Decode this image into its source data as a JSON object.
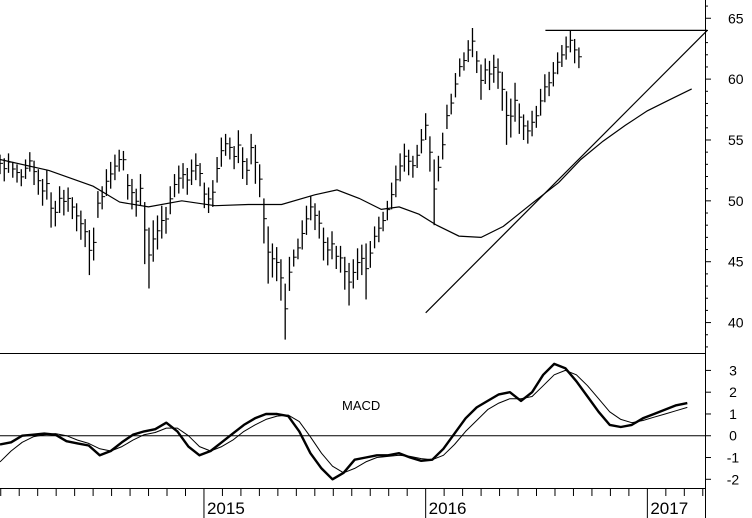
{
  "chart_data": [
    {
      "type": "ohlc",
      "panel": "price",
      "title": "",
      "xlabel": "",
      "ylabel": "",
      "ylim": [
        37.5,
        66.5
      ],
      "y_ticks": [
        40,
        45,
        50,
        55,
        60,
        65
      ],
      "x_range": [
        2014.08,
        2017.26
      ],
      "x_tick_labels": [
        "2015",
        "2016",
        "2017"
      ],
      "x_tick_values": [
        2015,
        2016,
        2017
      ],
      "price_bars_x_start": 2014.08,
      "price_bars_step_years": 0.0192,
      "price_bars": [
        {
          "h": 53.8,
          "l": 52.2
        },
        {
          "h": 53.5,
          "l": 51.6
        },
        {
          "h": 53.9,
          "l": 52.3
        },
        {
          "h": 53.2,
          "l": 51.9
        },
        {
          "h": 53.0,
          "l": 51.5
        },
        {
          "h": 52.6,
          "l": 51.2
        },
        {
          "h": 53.4,
          "l": 51.8
        },
        {
          "h": 54.0,
          "l": 52.4
        },
        {
          "h": 53.3,
          "l": 51.3
        },
        {
          "h": 52.6,
          "l": 50.5
        },
        {
          "h": 51.8,
          "l": 49.6
        },
        {
          "h": 52.5,
          "l": 50.1
        },
        {
          "h": 50.7,
          "l": 47.8
        },
        {
          "h": 50.0,
          "l": 47.9
        },
        {
          "h": 51.2,
          "l": 49.0
        },
        {
          "h": 50.9,
          "l": 48.8
        },
        {
          "h": 51.1,
          "l": 49.1
        },
        {
          "h": 50.3,
          "l": 48.5
        },
        {
          "h": 49.8,
          "l": 47.5
        },
        {
          "h": 49.2,
          "l": 46.8
        },
        {
          "h": 48.5,
          "l": 46.2
        },
        {
          "h": 47.6,
          "l": 43.9
        },
        {
          "h": 47.8,
          "l": 45.1
        },
        {
          "h": 50.8,
          "l": 48.6
        },
        {
          "h": 51.2,
          "l": 49.3
        },
        {
          "h": 52.6,
          "l": 50.4
        },
        {
          "h": 53.2,
          "l": 51.0
        },
        {
          "h": 53.8,
          "l": 51.7
        },
        {
          "h": 54.2,
          "l": 52.4
        },
        {
          "h": 54.1,
          "l": 52.5
        },
        {
          "h": 52.2,
          "l": 50.1
        },
        {
          "h": 51.8,
          "l": 49.3
        },
        {
          "h": 51.0,
          "l": 48.7
        },
        {
          "h": 52.2,
          "l": 49.6
        },
        {
          "h": 49.9,
          "l": 44.8
        },
        {
          "h": 47.8,
          "l": 42.8
        },
        {
          "h": 48.4,
          "l": 45.0
        },
        {
          "h": 48.8,
          "l": 46.0
        },
        {
          "h": 49.6,
          "l": 46.9
        },
        {
          "h": 49.5,
          "l": 47.3
        },
        {
          "h": 51.2,
          "l": 48.9
        },
        {
          "h": 52.2,
          "l": 50.3
        },
        {
          "h": 52.9,
          "l": 50.6
        },
        {
          "h": 53.1,
          "l": 51.0
        },
        {
          "h": 52.7,
          "l": 50.5
        },
        {
          "h": 53.4,
          "l": 51.3
        },
        {
          "h": 53.9,
          "l": 51.7
        },
        {
          "h": 53.1,
          "l": 51.2
        },
        {
          "h": 51.5,
          "l": 49.4
        },
        {
          "h": 51.1,
          "l": 49.0
        },
        {
          "h": 51.7,
          "l": 49.5
        },
        {
          "h": 53.6,
          "l": 51.5
        },
        {
          "h": 55.2,
          "l": 52.8
        },
        {
          "h": 55.5,
          "l": 53.7
        },
        {
          "h": 55.2,
          "l": 53.4
        },
        {
          "h": 54.5,
          "l": 52.6
        },
        {
          "h": 55.8,
          "l": 53.1
        },
        {
          "h": 54.4,
          "l": 51.8
        },
        {
          "h": 53.5,
          "l": 51.3
        },
        {
          "h": 55.5,
          "l": 53.0
        },
        {
          "h": 54.6,
          "l": 51.4
        },
        {
          "h": 53.0,
          "l": 50.3
        },
        {
          "h": 50.2,
          "l": 46.5
        },
        {
          "h": 47.9,
          "l": 43.2
        },
        {
          "h": 46.5,
          "l": 43.7
        },
        {
          "h": 46.2,
          "l": 43.4
        },
        {
          "h": 45.2,
          "l": 41.8
        },
        {
          "h": 43.2,
          "l": 38.6
        },
        {
          "h": 45.4,
          "l": 42.6
        },
        {
          "h": 46.0,
          "l": 44.6
        },
        {
          "h": 46.9,
          "l": 45.2
        },
        {
          "h": 48.4,
          "l": 46.0
        },
        {
          "h": 49.6,
          "l": 47.2
        },
        {
          "h": 50.4,
          "l": 48.4
        },
        {
          "h": 49.8,
          "l": 47.6
        },
        {
          "h": 49.2,
          "l": 46.9
        },
        {
          "h": 47.8,
          "l": 45.1
        },
        {
          "h": 47.0,
          "l": 44.7
        },
        {
          "h": 47.5,
          "l": 45.2
        },
        {
          "h": 46.3,
          "l": 44.4
        },
        {
          "h": 46.3,
          "l": 44.1
        },
        {
          "h": 45.4,
          "l": 42.7
        },
        {
          "h": 44.9,
          "l": 41.4
        },
        {
          "h": 45.2,
          "l": 42.8
        },
        {
          "h": 46.1,
          "l": 43.5
        },
        {
          "h": 46.4,
          "l": 43.9
        },
        {
          "h": 46.5,
          "l": 41.9
        },
        {
          "h": 46.7,
          "l": 44.5
        },
        {
          "h": 47.9,
          "l": 46.1
        },
        {
          "h": 48.7,
          "l": 46.6
        },
        {
          "h": 49.1,
          "l": 47.5
        },
        {
          "h": 50.0,
          "l": 48.4
        },
        {
          "h": 51.5,
          "l": 49.3
        },
        {
          "h": 52.9,
          "l": 50.3
        },
        {
          "h": 53.9,
          "l": 51.6
        },
        {
          "h": 54.7,
          "l": 52.4
        },
        {
          "h": 54.2,
          "l": 52.1
        },
        {
          "h": 53.7,
          "l": 51.9
        },
        {
          "h": 54.6,
          "l": 52.7
        },
        {
          "h": 55.9,
          "l": 53.9
        },
        {
          "h": 57.2,
          "l": 55.0
        },
        {
          "h": 55.3,
          "l": 52.4
        },
        {
          "h": 53.4,
          "l": 48.0
        },
        {
          "h": 53.7,
          "l": 51.6
        },
        {
          "h": 55.6,
          "l": 53.4
        },
        {
          "h": 57.9,
          "l": 55.9
        },
        {
          "h": 58.8,
          "l": 57.1
        },
        {
          "h": 60.5,
          "l": 58.5
        },
        {
          "h": 61.7,
          "l": 60.2
        },
        {
          "h": 62.2,
          "l": 60.7
        },
        {
          "h": 63.2,
          "l": 61.4
        },
        {
          "h": 64.2,
          "l": 61.8
        },
        {
          "h": 62.3,
          "l": 60.5
        },
        {
          "h": 61.2,
          "l": 58.3
        },
        {
          "h": 61.7,
          "l": 59.6
        },
        {
          "h": 61.5,
          "l": 59.1
        },
        {
          "h": 62.0,
          "l": 59.7
        },
        {
          "h": 61.7,
          "l": 59.2
        },
        {
          "h": 60.6,
          "l": 57.4
        },
        {
          "h": 59.0,
          "l": 54.6
        },
        {
          "h": 58.4,
          "l": 55.2
        },
        {
          "h": 59.7,
          "l": 56.5
        },
        {
          "h": 58.0,
          "l": 55.5
        },
        {
          "h": 57.1,
          "l": 55.0
        },
        {
          "h": 56.6,
          "l": 54.7
        },
        {
          "h": 57.4,
          "l": 55.3
        },
        {
          "h": 57.8,
          "l": 56.0
        },
        {
          "h": 59.2,
          "l": 57.0
        },
        {
          "h": 60.4,
          "l": 58.1
        },
        {
          "h": 60.6,
          "l": 58.6
        },
        {
          "h": 61.4,
          "l": 59.4
        },
        {
          "h": 62.2,
          "l": 60.4
        },
        {
          "h": 62.8,
          "l": 61.0
        },
        {
          "h": 63.5,
          "l": 61.6
        },
        {
          "h": 64.0,
          "l": 62.2
        },
        {
          "h": 63.3,
          "l": 61.3
        },
        {
          "h": 62.6,
          "l": 60.9
        }
      ],
      "overlays": [
        {
          "kind": "moving-average",
          "points": [
            [
              2014.08,
              53.4
            ],
            [
              2014.3,
              52.5
            ],
            [
              2014.5,
              51.2
            ],
            [
              2014.62,
              49.9
            ],
            [
              2014.75,
              49.5
            ],
            [
              2014.9,
              50.0
            ],
            [
              2015.05,
              49.6
            ],
            [
              2015.2,
              49.7
            ],
            [
              2015.35,
              49.7
            ],
            [
              2015.5,
              50.5
            ],
            [
              2015.6,
              50.9
            ],
            [
              2015.7,
              50.2
            ],
            [
              2015.8,
              49.3
            ],
            [
              2015.88,
              49.5
            ],
            [
              2015.97,
              48.9
            ],
            [
              2016.05,
              48.0
            ],
            [
              2016.15,
              47.1
            ],
            [
              2016.25,
              47.0
            ],
            [
              2016.35,
              47.9
            ],
            [
              2016.48,
              49.8
            ],
            [
              2016.6,
              51.5
            ],
            [
              2016.7,
              53.4
            ],
            [
              2016.8,
              54.9
            ],
            [
              2016.9,
              56.2
            ],
            [
              2017.0,
              57.4
            ],
            [
              2017.1,
              58.3
            ],
            [
              2017.2,
              59.2
            ]
          ]
        },
        {
          "kind": "trendline",
          "points": [
            [
              2016.0,
              40.8
            ],
            [
              2017.27,
              64.0
            ]
          ]
        },
        {
          "kind": "horizontal-resistance",
          "points": [
            [
              2016.54,
              64.0
            ],
            [
              2017.27,
              64.0
            ]
          ]
        }
      ]
    },
    {
      "type": "line",
      "panel": "indicator",
      "title": "MACD",
      "ylim": [
        -2.4,
        3.8
      ],
      "y_ticks": [
        -2,
        -1,
        0,
        1,
        2,
        3
      ],
      "x_range": [
        2014.08,
        2017.26
      ],
      "series": [
        {
          "style": "bold",
          "x": [
            2014.08,
            2014.13,
            2014.18,
            2014.23,
            2014.28,
            2014.33,
            2014.38,
            2014.43,
            2014.48,
            2014.53,
            2014.58,
            2014.63,
            2014.68,
            2014.73,
            2014.78,
            2014.83,
            2014.88,
            2014.93,
            2014.98,
            2015.03,
            2015.08,
            2015.13,
            2015.18,
            2015.23,
            2015.28,
            2015.33,
            2015.38,
            2015.43,
            2015.48,
            2015.53,
            2015.58,
            2015.63,
            2015.68,
            2015.73,
            2015.78,
            2015.83,
            2015.88,
            2015.93,
            2015.98,
            2016.03,
            2016.08,
            2016.13,
            2016.18,
            2016.23,
            2016.28,
            2016.33,
            2016.38,
            2016.43,
            2016.48,
            2016.53,
            2016.58,
            2016.63,
            2016.68,
            2016.73,
            2016.78,
            2016.83,
            2016.88,
            2016.93,
            2016.98,
            2017.03,
            2017.08,
            2017.13,
            2017.18
          ],
          "y": [
            -0.4,
            -0.3,
            0.0,
            0.05,
            0.1,
            0.05,
            -0.25,
            -0.35,
            -0.45,
            -0.9,
            -0.7,
            -0.3,
            0.05,
            0.2,
            0.3,
            0.6,
            0.2,
            -0.5,
            -0.9,
            -0.7,
            -0.3,
            0.1,
            0.5,
            0.8,
            1.0,
            1.0,
            0.9,
            0.2,
            -0.8,
            -1.5,
            -2.0,
            -1.7,
            -1.1,
            -1.0,
            -0.9,
            -0.9,
            -0.8,
            -1.0,
            -1.15,
            -1.1,
            -0.6,
            0.1,
            0.8,
            1.3,
            1.6,
            1.9,
            2.0,
            1.6,
            2.0,
            2.8,
            3.3,
            3.1,
            2.5,
            1.8,
            1.1,
            0.5,
            0.4,
            0.5,
            0.8,
            1.0,
            1.2,
            1.4,
            1.5
          ]
        },
        {
          "style": "thin",
          "x": [
            2014.08,
            2014.13,
            2014.18,
            2014.23,
            2014.28,
            2014.33,
            2014.38,
            2014.43,
            2014.48,
            2014.53,
            2014.58,
            2014.63,
            2014.68,
            2014.73,
            2014.78,
            2014.83,
            2014.88,
            2014.93,
            2014.98,
            2015.03,
            2015.08,
            2015.13,
            2015.18,
            2015.23,
            2015.28,
            2015.33,
            2015.38,
            2015.43,
            2015.48,
            2015.53,
            2015.58,
            2015.63,
            2015.68,
            2015.73,
            2015.78,
            2015.83,
            2015.88,
            2015.93,
            2015.98,
            2016.03,
            2016.08,
            2016.13,
            2016.18,
            2016.23,
            2016.28,
            2016.33,
            2016.38,
            2016.43,
            2016.48,
            2016.53,
            2016.58,
            2016.63,
            2016.68,
            2016.73,
            2016.78,
            2016.83,
            2016.88,
            2016.93,
            2016.98,
            2017.03,
            2017.08,
            2017.13,
            2017.18
          ],
          "y": [
            -1.2,
            -0.7,
            -0.3,
            -0.05,
            0.05,
            0.1,
            0.0,
            -0.2,
            -0.35,
            -0.6,
            -0.7,
            -0.5,
            -0.2,
            0.05,
            0.15,
            0.35,
            0.35,
            0.0,
            -0.5,
            -0.7,
            -0.5,
            -0.2,
            0.2,
            0.5,
            0.75,
            0.9,
            0.95,
            0.65,
            -0.05,
            -0.8,
            -1.4,
            -1.7,
            -1.5,
            -1.2,
            -1.0,
            -0.95,
            -0.9,
            -0.95,
            -1.05,
            -1.1,
            -0.9,
            -0.4,
            0.2,
            0.7,
            1.2,
            1.5,
            1.7,
            1.7,
            1.8,
            2.3,
            2.8,
            3.0,
            2.8,
            2.3,
            1.7,
            1.1,
            0.75,
            0.6,
            0.7,
            0.85,
            1.0,
            1.15,
            1.3
          ]
        }
      ]
    }
  ]
}
